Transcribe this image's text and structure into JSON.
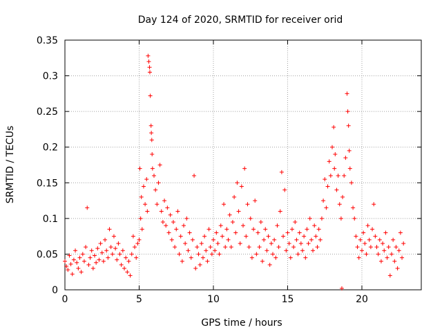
{
  "chart_data": {
    "type": "scatter",
    "title": "Day 124 of 2020, SRMTID for receiver orid",
    "xlabel": "GPS time / hours",
    "ylabel": "SRMTID / TECUs",
    "xlim": [
      0,
      24
    ],
    "ylim": [
      0,
      0.35
    ],
    "xticks": [
      0,
      5,
      10,
      15,
      20
    ],
    "yticks": [
      0,
      0.05,
      0.1,
      0.15,
      0.2,
      0.25,
      0.3,
      0.35
    ],
    "xtick_labels": [
      "0",
      "5",
      "10",
      "15",
      "20"
    ],
    "ytick_labels": [
      "0",
      "0.05",
      "0.1",
      "0.15",
      "0.2",
      "0.25",
      "0.3",
      "0.35"
    ],
    "grid": true,
    "marker": "+",
    "color": "#ff0000",
    "series": [
      {
        "name": "SRMTID",
        "points": [
          [
            0.0,
            0.04
          ],
          [
            0.1,
            0.033
          ],
          [
            0.2,
            0.028
          ],
          [
            0.3,
            0.048
          ],
          [
            0.4,
            0.036
          ],
          [
            0.5,
            0.022
          ],
          [
            0.6,
            0.042
          ],
          [
            0.7,
            0.055
          ],
          [
            0.8,
            0.038
          ],
          [
            0.9,
            0.03
          ],
          [
            1.0,
            0.045
          ],
          [
            1.1,
            0.025
          ],
          [
            1.2,
            0.05
          ],
          [
            1.3,
            0.04
          ],
          [
            1.4,
            0.06
          ],
          [
            1.5,
            0.115
          ],
          [
            1.6,
            0.035
          ],
          [
            1.7,
            0.045
          ],
          [
            1.8,
            0.055
          ],
          [
            1.9,
            0.03
          ],
          [
            2.0,
            0.048
          ],
          [
            2.1,
            0.038
          ],
          [
            2.2,
            0.058
          ],
          [
            2.3,
            0.042
          ],
          [
            2.4,
            0.065
          ],
          [
            2.5,
            0.052
          ],
          [
            2.6,
            0.04
          ],
          [
            2.7,
            0.07
          ],
          [
            2.8,
            0.055
          ],
          [
            2.9,
            0.045
          ],
          [
            3.0,
            0.085
          ],
          [
            3.1,
            0.06
          ],
          [
            3.2,
            0.05
          ],
          [
            3.3,
            0.075
          ],
          [
            3.4,
            0.058
          ],
          [
            3.5,
            0.042
          ],
          [
            3.6,
            0.065
          ],
          [
            3.7,
            0.05
          ],
          [
            3.8,
            0.035
          ],
          [
            3.9,
            0.055
          ],
          [
            4.0,
            0.03
          ],
          [
            4.1,
            0.045
          ],
          [
            4.2,
            0.025
          ],
          [
            4.3,
            0.04
          ],
          [
            4.4,
            0.02
          ],
          [
            4.5,
            0.05
          ],
          [
            4.6,
            0.075
          ],
          [
            4.7,
            0.06
          ],
          [
            4.8,
            0.045
          ],
          [
            4.9,
            0.065
          ],
          [
            5.0,
            0.07
          ],
          [
            5.05,
            0.17
          ],
          [
            5.1,
            0.1
          ],
          [
            5.15,
            0.13
          ],
          [
            5.2,
            0.085
          ],
          [
            5.3,
            0.145
          ],
          [
            5.4,
            0.12
          ],
          [
            5.5,
            0.155
          ],
          [
            5.55,
            0.11
          ],
          [
            5.6,
            0.328
          ],
          [
            5.65,
            0.32
          ],
          [
            5.7,
            0.312
          ],
          [
            5.72,
            0.305
          ],
          [
            5.75,
            0.272
          ],
          [
            5.8,
            0.23
          ],
          [
            5.82,
            0.22
          ],
          [
            5.85,
            0.21
          ],
          [
            5.87,
            0.19
          ],
          [
            5.9,
            0.17
          ],
          [
            6.0,
            0.16
          ],
          [
            6.1,
            0.14
          ],
          [
            6.2,
            0.12
          ],
          [
            6.3,
            0.15
          ],
          [
            6.4,
            0.175
          ],
          [
            6.5,
            0.11
          ],
          [
            6.6,
            0.095
          ],
          [
            6.7,
            0.125
          ],
          [
            6.8,
            0.09
          ],
          [
            6.9,
            0.115
          ],
          [
            7.0,
            0.08
          ],
          [
            7.1,
            0.105
          ],
          [
            7.2,
            0.07
          ],
          [
            7.3,
            0.095
          ],
          [
            7.4,
            0.06
          ],
          [
            7.5,
            0.085
          ],
          [
            7.6,
            0.11
          ],
          [
            7.7,
            0.05
          ],
          [
            7.8,
            0.075
          ],
          [
            7.9,
            0.04
          ],
          [
            8.0,
            0.09
          ],
          [
            8.1,
            0.065
          ],
          [
            8.2,
            0.1
          ],
          [
            8.3,
            0.055
          ],
          [
            8.4,
            0.08
          ],
          [
            8.5,
            0.045
          ],
          [
            8.6,
            0.07
          ],
          [
            8.7,
            0.16
          ],
          [
            8.8,
            0.03
          ],
          [
            8.9,
            0.06
          ],
          [
            9.0,
            0.05
          ],
          [
            9.1,
            0.035
          ],
          [
            9.2,
            0.065
          ],
          [
            9.3,
            0.045
          ],
          [
            9.4,
            0.075
          ],
          [
            9.5,
            0.055
          ],
          [
            9.6,
            0.04
          ],
          [
            9.7,
            0.085
          ],
          [
            9.8,
            0.06
          ],
          [
            9.9,
            0.05
          ],
          [
            10.0,
            0.07
          ],
          [
            10.1,
            0.055
          ],
          [
            10.2,
            0.08
          ],
          [
            10.3,
            0.065
          ],
          [
            10.4,
            0.05
          ],
          [
            10.5,
            0.09
          ],
          [
            10.6,
            0.075
          ],
          [
            10.7,
            0.12
          ],
          [
            10.8,
            0.06
          ],
          [
            10.9,
            0.085
          ],
          [
            11.0,
            0.07
          ],
          [
            11.1,
            0.105
          ],
          [
            11.2,
            0.06
          ],
          [
            11.3,
            0.095
          ],
          [
            11.4,
            0.13
          ],
          [
            11.5,
            0.08
          ],
          [
            11.6,
            0.15
          ],
          [
            11.7,
            0.11
          ],
          [
            11.8,
            0.065
          ],
          [
            11.9,
            0.145
          ],
          [
            12.0,
            0.09
          ],
          [
            12.1,
            0.17
          ],
          [
            12.2,
            0.075
          ],
          [
            12.3,
            0.12
          ],
          [
            12.4,
            0.06
          ],
          [
            12.5,
            0.1
          ],
          [
            12.6,
            0.045
          ],
          [
            12.7,
            0.085
          ],
          [
            12.8,
            0.125
          ],
          [
            12.9,
            0.05
          ],
          [
            13.0,
            0.08
          ],
          [
            13.1,
            0.06
          ],
          [
            13.2,
            0.095
          ],
          [
            13.3,
            0.04
          ],
          [
            13.4,
            0.07
          ],
          [
            13.5,
            0.085
          ],
          [
            13.6,
            0.055
          ],
          [
            13.7,
            0.075
          ],
          [
            13.8,
            0.035
          ],
          [
            13.9,
            0.065
          ],
          [
            14.0,
            0.05
          ],
          [
            14.1,
            0.07
          ],
          [
            14.2,
            0.045
          ],
          [
            14.3,
            0.09
          ],
          [
            14.4,
            0.06
          ],
          [
            14.5,
            0.11
          ],
          [
            14.6,
            0.165
          ],
          [
            14.7,
            0.075
          ],
          [
            14.8,
            0.14
          ],
          [
            14.9,
            0.055
          ],
          [
            15.0,
            0.08
          ],
          [
            15.1,
            0.065
          ],
          [
            15.2,
            0.045
          ],
          [
            15.3,
            0.085
          ],
          [
            15.4,
            0.06
          ],
          [
            15.5,
            0.095
          ],
          [
            15.6,
            0.07
          ],
          [
            15.7,
            0.05
          ],
          [
            15.8,
            0.08
          ],
          [
            15.9,
            0.065
          ],
          [
            16.0,
            0.055
          ],
          [
            16.1,
            0.075
          ],
          [
            16.2,
            0.045
          ],
          [
            16.3,
            0.085
          ],
          [
            16.4,
            0.065
          ],
          [
            16.5,
            0.1
          ],
          [
            16.6,
            0.07
          ],
          [
            16.7,
            0.055
          ],
          [
            16.8,
            0.09
          ],
          [
            16.9,
            0.075
          ],
          [
            17.0,
            0.06
          ],
          [
            17.1,
            0.085
          ],
          [
            17.2,
            0.07
          ],
          [
            17.3,
            0.1
          ],
          [
            17.4,
            0.125
          ],
          [
            17.5,
            0.155
          ],
          [
            17.6,
            0.115
          ],
          [
            17.7,
            0.145
          ],
          [
            17.8,
            0.18
          ],
          [
            17.9,
            0.16
          ],
          [
            18.0,
            0.2
          ],
          [
            18.1,
            0.228
          ],
          [
            18.15,
            0.17
          ],
          [
            18.2,
            0.19
          ],
          [
            18.3,
            0.14
          ],
          [
            18.4,
            0.16
          ],
          [
            18.5,
            0.12
          ],
          [
            18.6,
            0.1
          ],
          [
            18.65,
            0.002
          ],
          [
            18.7,
            0.13
          ],
          [
            18.8,
            0.16
          ],
          [
            18.9,
            0.185
          ],
          [
            19.0,
            0.275
          ],
          [
            19.05,
            0.25
          ],
          [
            19.1,
            0.23
          ],
          [
            19.15,
            0.195
          ],
          [
            19.2,
            0.17
          ],
          [
            19.3,
            0.15
          ],
          [
            19.4,
            0.115
          ],
          [
            19.5,
            0.1
          ],
          [
            19.6,
            0.075
          ],
          [
            19.7,
            0.06
          ],
          [
            19.8,
            0.045
          ],
          [
            19.9,
            0.07
          ],
          [
            20.0,
            0.055
          ],
          [
            20.1,
            0.08
          ],
          [
            20.2,
            0.065
          ],
          [
            20.3,
            0.05
          ],
          [
            20.4,
            0.09
          ],
          [
            20.5,
            0.07
          ],
          [
            20.6,
            0.06
          ],
          [
            20.7,
            0.085
          ],
          [
            20.8,
            0.12
          ],
          [
            20.9,
            0.075
          ],
          [
            21.0,
            0.06
          ],
          [
            21.1,
            0.05
          ],
          [
            21.2,
            0.07
          ],
          [
            21.3,
            0.04
          ],
          [
            21.4,
            0.065
          ],
          [
            21.5,
            0.055
          ],
          [
            21.6,
            0.08
          ],
          [
            21.7,
            0.045
          ],
          [
            21.8,
            0.06
          ],
          [
            21.9,
            0.02
          ],
          [
            22.0,
            0.05
          ],
          [
            22.1,
            0.07
          ],
          [
            22.2,
            0.04
          ],
          [
            22.3,
            0.06
          ],
          [
            22.4,
            0.03
          ],
          [
            22.5,
            0.055
          ],
          [
            22.6,
            0.08
          ],
          [
            22.7,
            0.045
          ],
          [
            22.8,
            0.065
          ]
        ]
      }
    ]
  }
}
